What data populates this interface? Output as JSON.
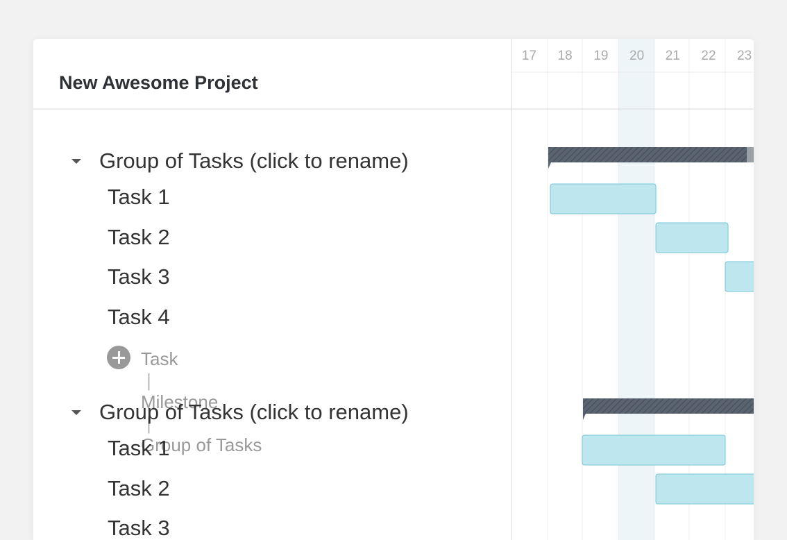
{
  "header": {
    "title": "New Awesome Project"
  },
  "days": [
    17,
    18,
    19,
    20,
    21,
    22,
    23
  ],
  "groups": [
    {
      "name": "Group of Tasks (click to rename)",
      "tasks": [
        "Task 1",
        "Task 2",
        "Task 3",
        "Task 4"
      ],
      "add_options": [
        "Task",
        "Milestone",
        "Group of Tasks"
      ]
    },
    {
      "name": "Group of Tasks (click to rename)",
      "tasks": [
        "Task 1",
        "Task 2",
        "Task 3"
      ]
    }
  ]
}
